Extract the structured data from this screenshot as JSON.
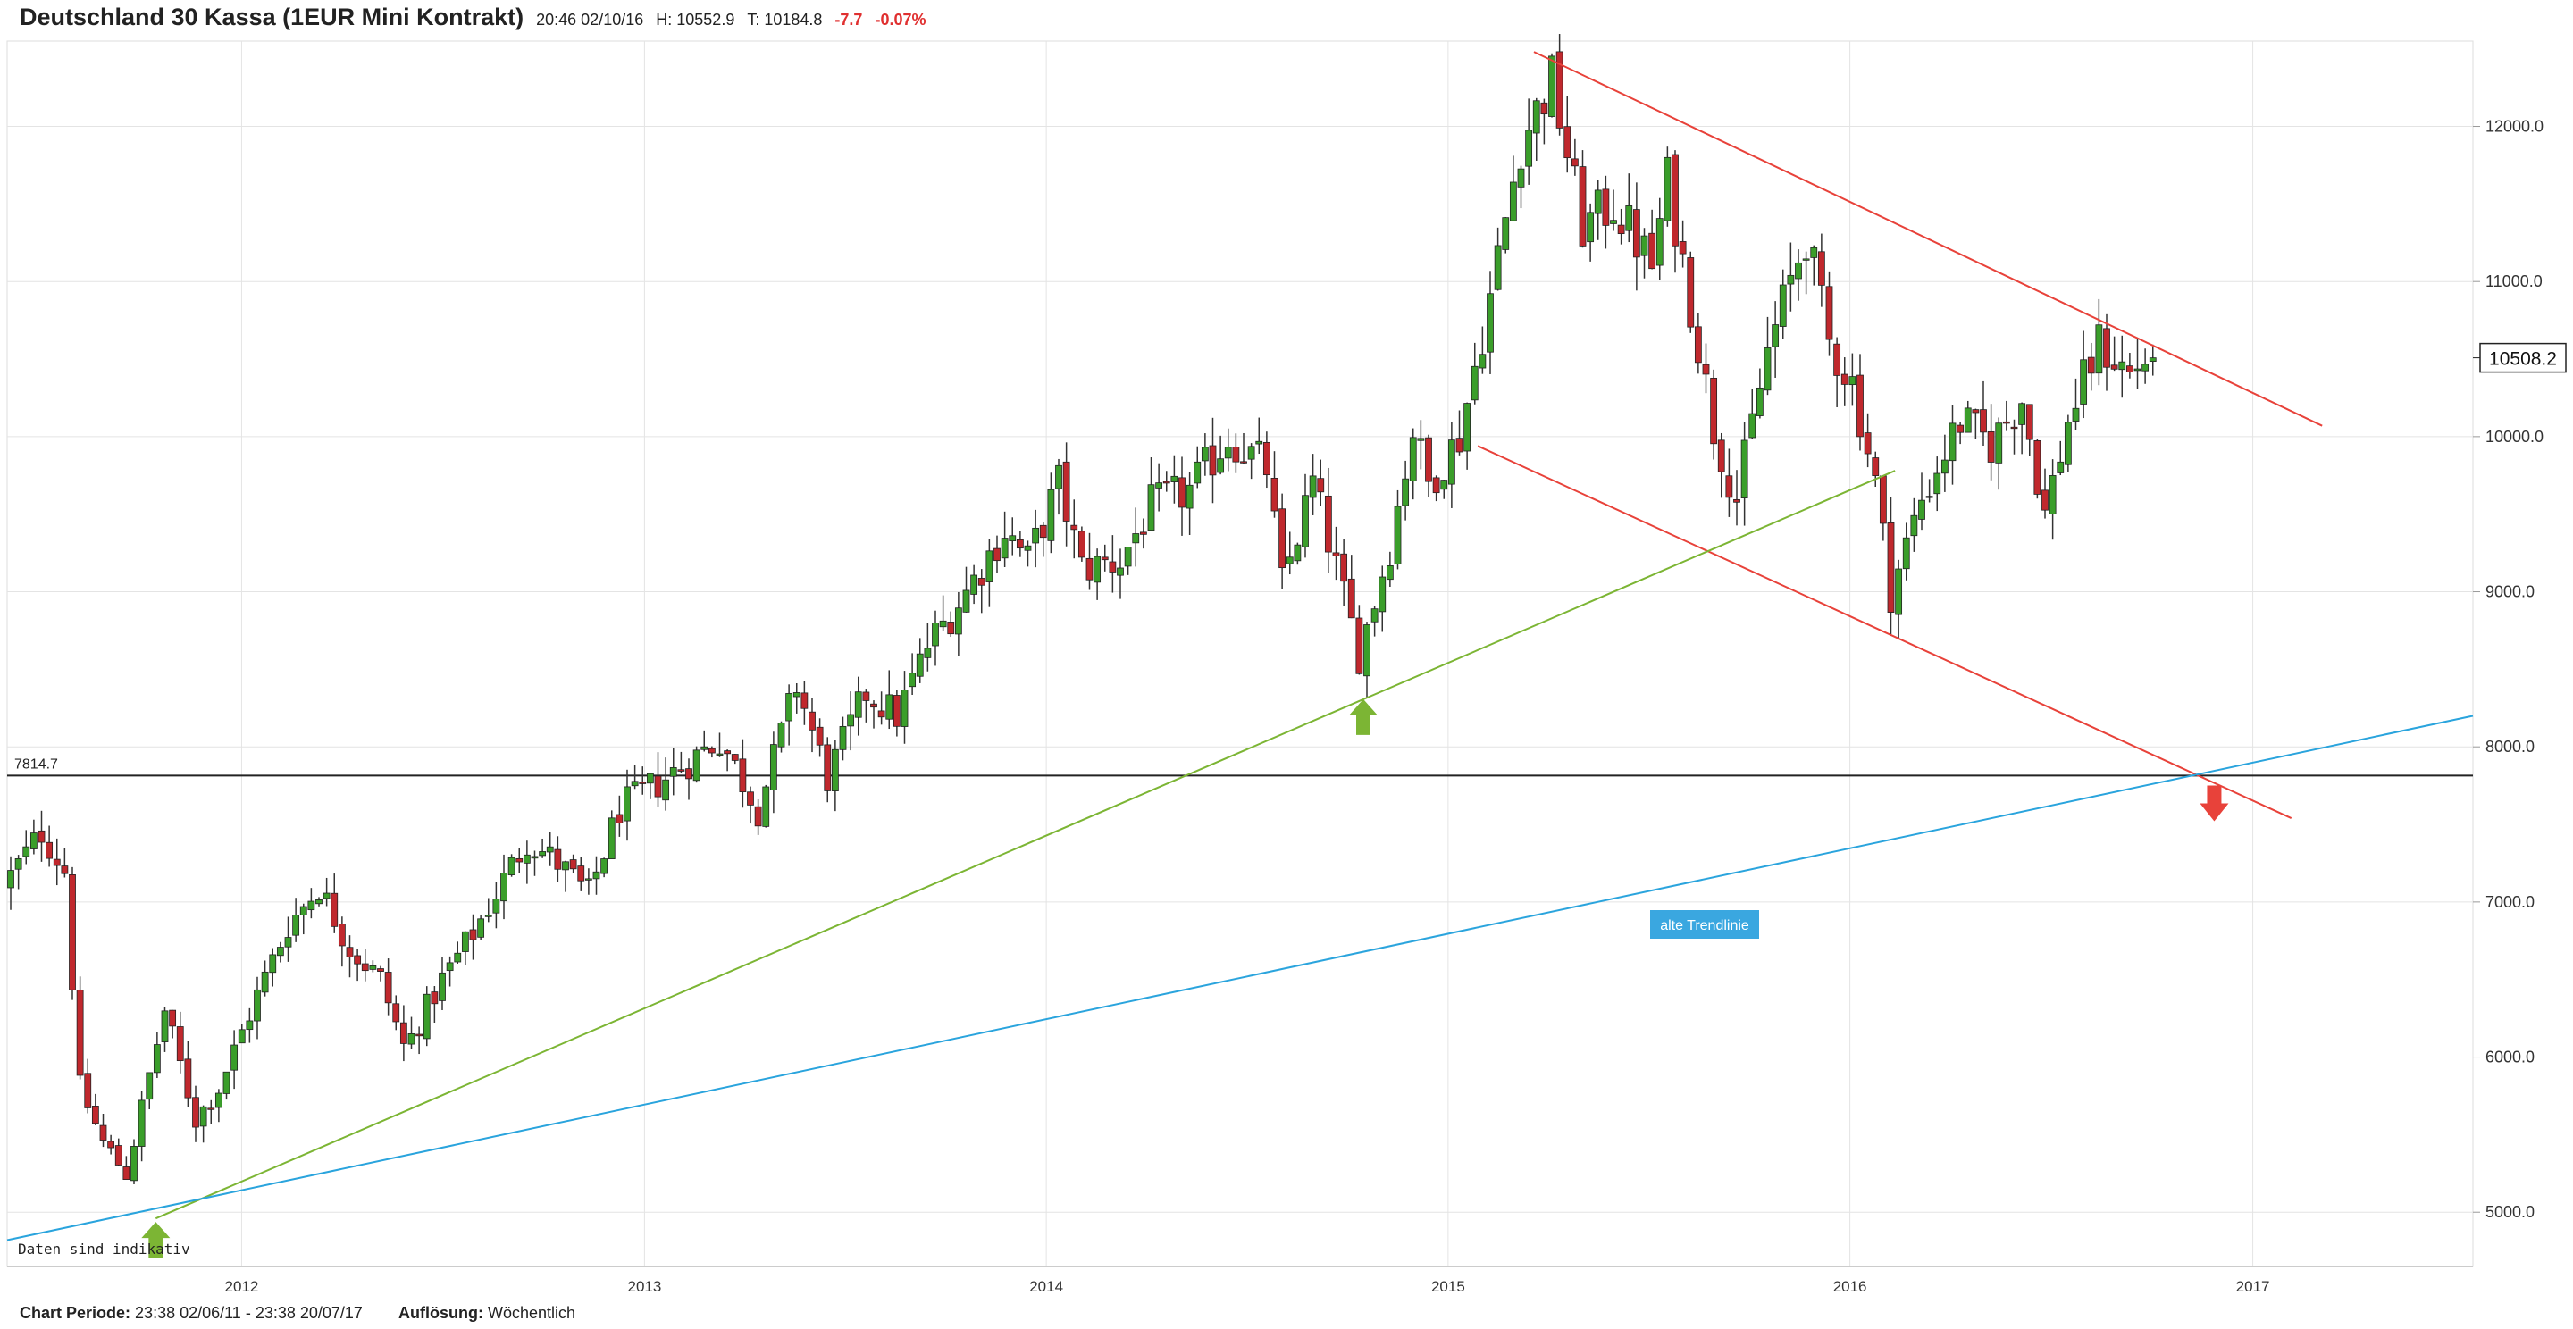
{
  "header": {
    "title": "Deutschland 30 Kassa (1EUR Mini Kontrakt)",
    "time": "20:46 02/10/16",
    "high": "H: 10552.9",
    "low": "T: 10184.8",
    "change": "-7.7",
    "change_pct": "-0.07%"
  },
  "footer": {
    "period_label": "Chart Periode:",
    "period_value": "23:38 02/06/11 - 23:38 20/07/17",
    "resolution_label": "Auflösung:",
    "resolution_value": "Wöchentlich"
  },
  "chart_data": {
    "type": "candlestick",
    "title": "Deutschland 30 Kassa (1EUR Mini Kontrakt)",
    "x_ticks": [
      "2012",
      "2013",
      "2014",
      "2015",
      "2016",
      "2017"
    ],
    "y_ticks": [
      "5000.0",
      "6000.0",
      "7000.0",
      "8000.0",
      "9000.0",
      "10000.0",
      "11000.0",
      "12000.0"
    ],
    "ylim": [
      4650,
      12550
    ],
    "xlim": [
      "2011-06-02",
      "2017-07-20"
    ],
    "last_price": "10508.2",
    "horizontal_line": {
      "value": 7814.7,
      "label": "7814.7"
    },
    "note": "Daten sind indikativ",
    "annotation": "alte Trendlinie",
    "up_color": "#3a9e2a",
    "down_color": "#c0282d",
    "anchor_points": [
      [
        "2011-06-02",
        7100
      ],
      [
        "2011-07-07",
        7450
      ],
      [
        "2011-07-28",
        7200
      ],
      [
        "2011-08-11",
        5800
      ],
      [
        "2011-09-01",
        5450
      ],
      [
        "2011-09-22",
        5250
      ],
      [
        "2011-10-27",
        6300
      ],
      [
        "2011-11-24",
        5600
      ],
      [
        "2011-12-15",
        5800
      ],
      [
        "2012-01-19",
        6400
      ],
      [
        "2012-02-16",
        6850
      ],
      [
        "2012-03-15",
        7100
      ],
      [
        "2012-04-12",
        6700
      ],
      [
        "2012-05-10",
        6500
      ],
      [
        "2012-06-01",
        6050
      ],
      [
        "2012-07-05",
        6500
      ],
      [
        "2012-08-02",
        6800
      ],
      [
        "2012-09-20",
        7400
      ],
      [
        "2012-10-18",
        7250
      ],
      [
        "2012-11-15",
        7050
      ],
      [
        "2012-12-13",
        7600
      ],
      [
        "2013-01-24",
        7800
      ],
      [
        "2013-03-14",
        8050
      ],
      [
        "2013-04-18",
        7600
      ],
      [
        "2013-05-23",
        8400
      ],
      [
        "2013-06-20",
        7800
      ],
      [
        "2013-07-25",
        8350
      ],
      [
        "2013-08-22",
        8200
      ],
      [
        "2013-09-19",
        8650
      ],
      [
        "2013-10-24",
        9000
      ],
      [
        "2013-11-28",
        9400
      ],
      [
        "2013-12-19",
        9200
      ],
      [
        "2014-01-16",
        9700
      ],
      [
        "2014-02-06",
        9150
      ],
      [
        "2014-03-13",
        9200
      ],
      [
        "2014-04-10",
        9550
      ],
      [
        "2014-05-15",
        9650
      ],
      [
        "2014-06-19",
        10000
      ],
      [
        "2014-07-24",
        9800
      ],
      [
        "2014-08-07",
        9050
      ],
      [
        "2014-09-04",
        9700
      ],
      [
        "2014-10-16",
        8600
      ],
      [
        "2014-11-13",
        9300
      ],
      [
        "2014-12-04",
        10050
      ],
      [
        "2014-12-18",
        9700
      ],
      [
        "2015-01-15",
        10000
      ],
      [
        "2015-02-12",
        10900
      ],
      [
        "2015-03-12",
        11900
      ],
      [
        "2015-04-09",
        12300
      ],
      [
        "2015-05-07",
        11350
      ],
      [
        "2015-06-04",
        11500
      ],
      [
        "2015-07-09",
        11100
      ],
      [
        "2015-07-23",
        11650
      ],
      [
        "2015-08-20",
        10600
      ],
      [
        "2015-09-03",
        10050
      ],
      [
        "2015-09-24",
        9600
      ],
      [
        "2015-10-22",
        10550
      ],
      [
        "2015-11-26",
        11300
      ],
      [
        "2015-12-17",
        10600
      ],
      [
        "2016-01-07",
        10350
      ],
      [
        "2016-01-28",
        9700
      ],
      [
        "2016-02-11",
        9000
      ],
      [
        "2016-03-10",
        9600
      ],
      [
        "2016-04-14",
        10100
      ],
      [
        "2016-05-12",
        9950
      ],
      [
        "2016-06-09",
        10250
      ],
      [
        "2016-06-30",
        9500
      ],
      [
        "2016-07-21",
        10100
      ],
      [
        "2016-08-18",
        10600
      ],
      [
        "2016-09-15",
        10400
      ],
      [
        "2016-09-29",
        10508
      ]
    ],
    "trendlines": [
      {
        "name": "resistance",
        "color": "#e8423a",
        "from": [
          "2015-03-20",
          12480
        ],
        "to": [
          "2017-03-05",
          10070
        ]
      },
      {
        "name": "channel-lower",
        "color": "#e8423a",
        "from": [
          "2015-01-28",
          9940
        ],
        "to": [
          "2017-02-05",
          7540
        ]
      },
      {
        "name": "support",
        "color": "#7cb534",
        "from": [
          "2011-10-15",
          4960
        ],
        "to": [
          "2016-02-11",
          9780
        ]
      },
      {
        "name": "alte-trendlinie",
        "color": "#2aa4dd",
        "from": [
          "2011-06-02",
          4820
        ],
        "to": [
          "2017-07-20",
          8200
        ]
      }
    ],
    "arrows": [
      {
        "name": "arrow-up-1",
        "color": "#7cb534",
        "direction": "up",
        "at": [
          "2011-10-15",
          4960
        ]
      },
      {
        "name": "arrow-up-2",
        "color": "#7cb534",
        "direction": "up",
        "at": [
          "2014-10-16",
          8330
        ]
      },
      {
        "name": "arrow-down",
        "color": "#e8423a",
        "direction": "down",
        "at": [
          "2016-11-27",
          7820
        ]
      }
    ]
  }
}
